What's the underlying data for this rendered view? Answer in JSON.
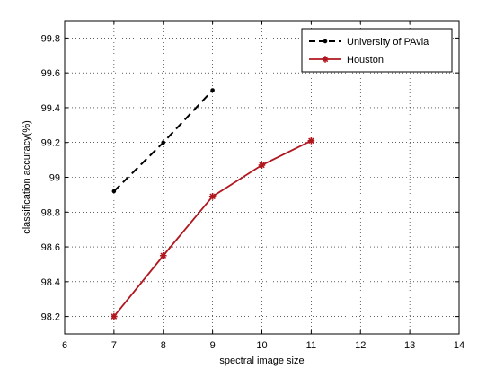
{
  "chart_data": {
    "type": "line",
    "xlabel": "spectral image size",
    "ylabel": "classification accuracy(%)",
    "xlim": [
      6,
      14
    ],
    "ylim": [
      98.1,
      99.9
    ],
    "xticks": [
      6,
      7,
      8,
      9,
      10,
      11,
      12,
      13,
      14
    ],
    "yticks": [
      98.2,
      98.4,
      98.6,
      98.8,
      99,
      99.2,
      99.4,
      99.6,
      99.8
    ],
    "grid": true,
    "legend_position": "top-right",
    "series": [
      {
        "name": "University of PAvia",
        "x": [
          7,
          8,
          9
        ],
        "values": [
          98.92,
          99.2,
          99.5
        ],
        "color": "#000000",
        "line_style": "dashed",
        "marker": "point"
      },
      {
        "name": "Houston",
        "x": [
          7,
          8,
          9,
          10,
          11
        ],
        "values": [
          98.2,
          98.55,
          98.89,
          99.07,
          99.21
        ],
        "color": "#b0171f",
        "line_style": "solid",
        "marker": "star"
      }
    ]
  }
}
